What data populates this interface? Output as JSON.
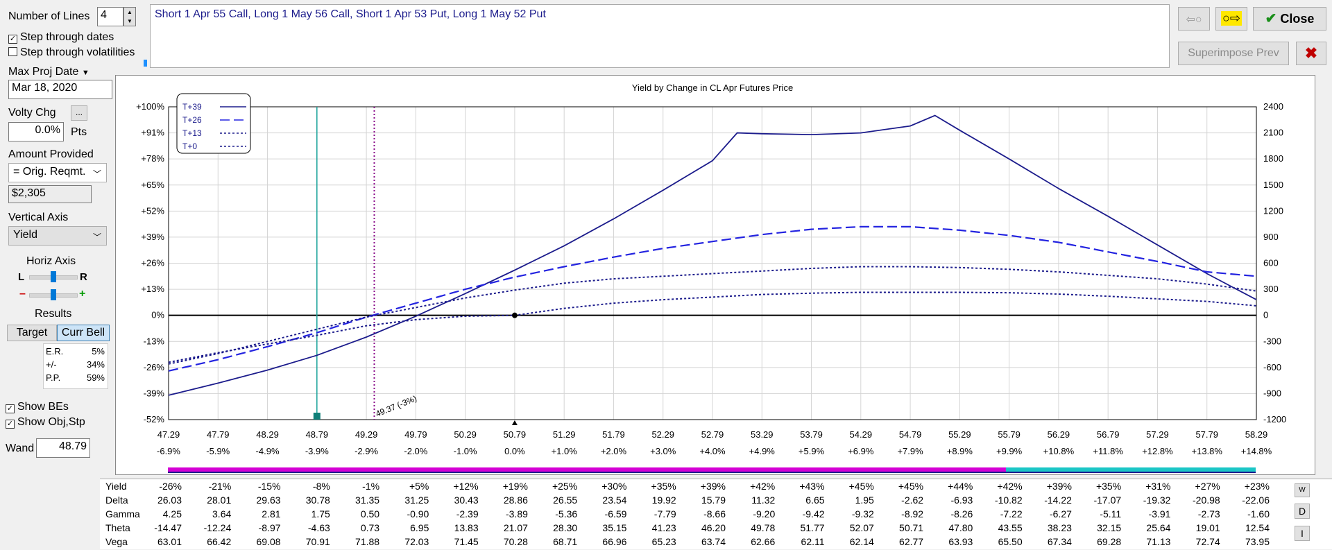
{
  "controls": {
    "number_of_lines_label": "Number of Lines",
    "number_of_lines_value": "4",
    "step_dates_label": "Step through dates",
    "step_dates_checked": true,
    "step_vols_label": "Step through volatilities",
    "step_vols_checked": false,
    "max_proj_date_label": "Max Proj Date",
    "max_proj_date_value": "Mar 18, 2020",
    "volty_chg_label": "Volty Chg",
    "volty_button": "...",
    "volty_value": "0.0%",
    "volty_unit": "Pts",
    "amount_provided_label": "Amount Provided",
    "amount_provided_value": "= Orig. Reqmt.",
    "amount_value": "$2,305",
    "vertical_axis_label": "Vertical Axis",
    "vertical_axis_value": "Yield",
    "horiz_axis_label": "Horiz Axis",
    "horiz_l": "L",
    "horiz_r": "R",
    "horiz_minus": "–",
    "horiz_plus": "+",
    "results_label": "Results",
    "target_tab": "Target",
    "curr_bell_tab": "Curr Bell",
    "results": [
      {
        "label": "E.R.",
        "value": "5%"
      },
      {
        "label": "+/-",
        "value": "34%"
      },
      {
        "label": "P.P.",
        "value": "59%"
      }
    ],
    "show_bes_label": "Show BEs",
    "show_obj_label": "Show Obj,Stp",
    "wand_label": "Wand",
    "wand_value": "48.79"
  },
  "header": {
    "description": "Short 1 Apr 55 Call, Long 1 May 56 Call, Short 1 Apr 53 Put, Long 1 May 52 Put",
    "close_label": "Close",
    "superimpose_label": "Superimpose Prev"
  },
  "colors": {
    "navy": "#1c1c8c",
    "blue": "#2323e0",
    "teal": "#1aa39a",
    "purple": "#8b0a8b",
    "magenta": "#d400d4",
    "cyan": "#1ac6c6"
  },
  "chart_data": {
    "type": "line",
    "title": "Yield by Change in CL Apr Futures Price",
    "x_ticks": [
      "47.29",
      "47.79",
      "48.29",
      "48.79",
      "49.29",
      "49.79",
      "50.29",
      "50.79",
      "51.29",
      "51.79",
      "52.29",
      "52.79",
      "53.29",
      "53.79",
      "54.29",
      "54.79",
      "55.29",
      "55.79",
      "56.29",
      "56.79",
      "57.29",
      "57.79",
      "58.29"
    ],
    "x_pct_ticks": [
      "-6.9%",
      "-5.9%",
      "-4.9%",
      "-3.9%",
      "-2.9%",
      "-2.0%",
      "-1.0%",
      "0.0%",
      "+1.0%",
      "+2.0%",
      "+3.0%",
      "+4.0%",
      "+4.9%",
      "+5.9%",
      "+6.9%",
      "+7.9%",
      "+8.9%",
      "+9.9%",
      "+10.8%",
      "+11.8%",
      "+12.8%",
      "+13.8%",
      "+14.8%"
    ],
    "xlim": [
      47.29,
      58.29
    ],
    "y_left_ticks": [
      "+100%",
      "+91%",
      "+78%",
      "+65%",
      "+52%",
      "+39%",
      "+26%",
      "+13%",
      "0%",
      "-13%",
      "-26%",
      "-39%",
      "-52%"
    ],
    "y_right_ticks": [
      "2400",
      "2100",
      "1800",
      "1500",
      "1200",
      "900",
      "600",
      "300",
      "0",
      "-300",
      "-600",
      "-900",
      "-1200"
    ],
    "ylim": [
      -1200,
      2400
    ],
    "legend": [
      "T+39",
      "T+26",
      "T+13",
      "T+0"
    ],
    "legend_position": "top-left",
    "grid": true,
    "series": [
      {
        "name": "T+39",
        "style": "solid",
        "x": [
          47.29,
          47.79,
          48.29,
          48.79,
          49.29,
          49.79,
          50.29,
          50.79,
          51.29,
          51.79,
          52.29,
          52.79,
          53.04,
          53.29,
          53.79,
          54.29,
          54.79,
          55.04,
          55.29,
          55.79,
          56.29,
          56.79,
          57.29,
          57.79,
          58.29
        ],
        "y": [
          -920,
          -780,
          -630,
          -460,
          -250,
          -10,
          250,
          520,
          800,
          1110,
          1440,
          1780,
          2100,
          2090,
          2080,
          2100,
          2180,
          2300,
          2130,
          1800,
          1460,
          1140,
          810,
          480,
          180
        ]
      },
      {
        "name": "T+26",
        "style": "dash",
        "x": [
          47.29,
          47.79,
          48.29,
          48.79,
          49.29,
          49.79,
          50.29,
          50.79,
          51.29,
          51.79,
          52.29,
          52.79,
          53.29,
          53.79,
          54.29,
          54.79,
          55.29,
          55.79,
          56.29,
          56.79,
          57.29,
          57.79,
          58.29
        ],
        "y": [
          -640,
          -510,
          -360,
          -200,
          -20,
          140,
          300,
          440,
          560,
          670,
          770,
          850,
          930,
          990,
          1020,
          1020,
          980,
          920,
          840,
          730,
          620,
          500,
          450
        ]
      },
      {
        "name": "T+13",
        "style": "dot",
        "x": [
          47.29,
          47.79,
          48.29,
          48.79,
          49.29,
          49.79,
          50.29,
          50.79,
          51.29,
          51.79,
          52.29,
          52.79,
          53.29,
          53.79,
          54.29,
          54.79,
          55.29,
          55.79,
          56.29,
          56.79,
          57.29,
          57.79,
          58.29
        ],
        "y": [
          -560,
          -440,
          -300,
          -160,
          -20,
          90,
          200,
          290,
          370,
          420,
          450,
          480,
          510,
          540,
          560,
          560,
          550,
          530,
          500,
          460,
          420,
          360,
          280
        ]
      },
      {
        "name": "T+0",
        "style": "dot",
        "x": [
          47.29,
          47.79,
          48.29,
          48.79,
          49.29,
          49.79,
          50.29,
          50.79,
          51.29,
          51.79,
          52.29,
          52.79,
          53.29,
          53.79,
          54.29,
          54.79,
          55.29,
          55.79,
          56.29,
          56.79,
          57.29,
          57.79,
          58.29
        ],
        "y": [
          -540,
          -430,
          -330,
          -230,
          -120,
          -50,
          -10,
          0,
          80,
          140,
          180,
          210,
          240,
          255,
          265,
          265,
          265,
          260,
          245,
          220,
          190,
          160,
          110
        ]
      }
    ],
    "annotations": [
      {
        "text": "49.37 (-3%)",
        "x": 49.37
      }
    ],
    "wand_x": 48.79,
    "current_x": 50.79
  },
  "table": {
    "rows": [
      {
        "label": "Yield",
        "values": [
          "-26%",
          "-21%",
          "-15%",
          "-8%",
          "-1%",
          "+5%",
          "+12%",
          "+19%",
          "+25%",
          "+30%",
          "+35%",
          "+39%",
          "+42%",
          "+43%",
          "+45%",
          "+45%",
          "+44%",
          "+42%",
          "+39%",
          "+35%",
          "+31%",
          "+27%",
          "+23%"
        ]
      },
      {
        "label": "Delta",
        "values": [
          "26.03",
          "28.01",
          "29.63",
          "30.78",
          "31.35",
          "31.25",
          "30.43",
          "28.86",
          "26.55",
          "23.54",
          "19.92",
          "15.79",
          "11.32",
          "6.65",
          "1.95",
          "-2.62",
          "-6.93",
          "-10.82",
          "-14.22",
          "-17.07",
          "-19.32",
          "-20.98",
          "-22.06"
        ]
      },
      {
        "label": "Gamma",
        "values": [
          "4.25",
          "3.64",
          "2.81",
          "1.75",
          "0.50",
          "-0.90",
          "-2.39",
          "-3.89",
          "-5.36",
          "-6.59",
          "-7.79",
          "-8.66",
          "-9.20",
          "-9.42",
          "-9.32",
          "-8.92",
          "-8.26",
          "-7.22",
          "-6.27",
          "-5.11",
          "-3.91",
          "-2.73",
          "-1.60"
        ]
      },
      {
        "label": "Theta",
        "values": [
          "-14.47",
          "-12.24",
          "-8.97",
          "-4.63",
          "0.73",
          "6.95",
          "13.83",
          "21.07",
          "28.30",
          "35.15",
          "41.23",
          "46.20",
          "49.78",
          "51.77",
          "52.07",
          "50.71",
          "47.80",
          "43.55",
          "38.23",
          "32.15",
          "25.64",
          "19.01",
          "12.54"
        ]
      },
      {
        "label": "Vega",
        "values": [
          "63.01",
          "66.42",
          "69.08",
          "70.91",
          "71.88",
          "72.03",
          "71.45",
          "70.28",
          "68.71",
          "66.96",
          "65.23",
          "63.74",
          "62.66",
          "62.11",
          "62.14",
          "62.77",
          "63.93",
          "65.50",
          "67.34",
          "69.28",
          "71.13",
          "72.74",
          "73.95"
        ]
      }
    ],
    "side_buttons": [
      "W",
      "D",
      "I"
    ]
  }
}
